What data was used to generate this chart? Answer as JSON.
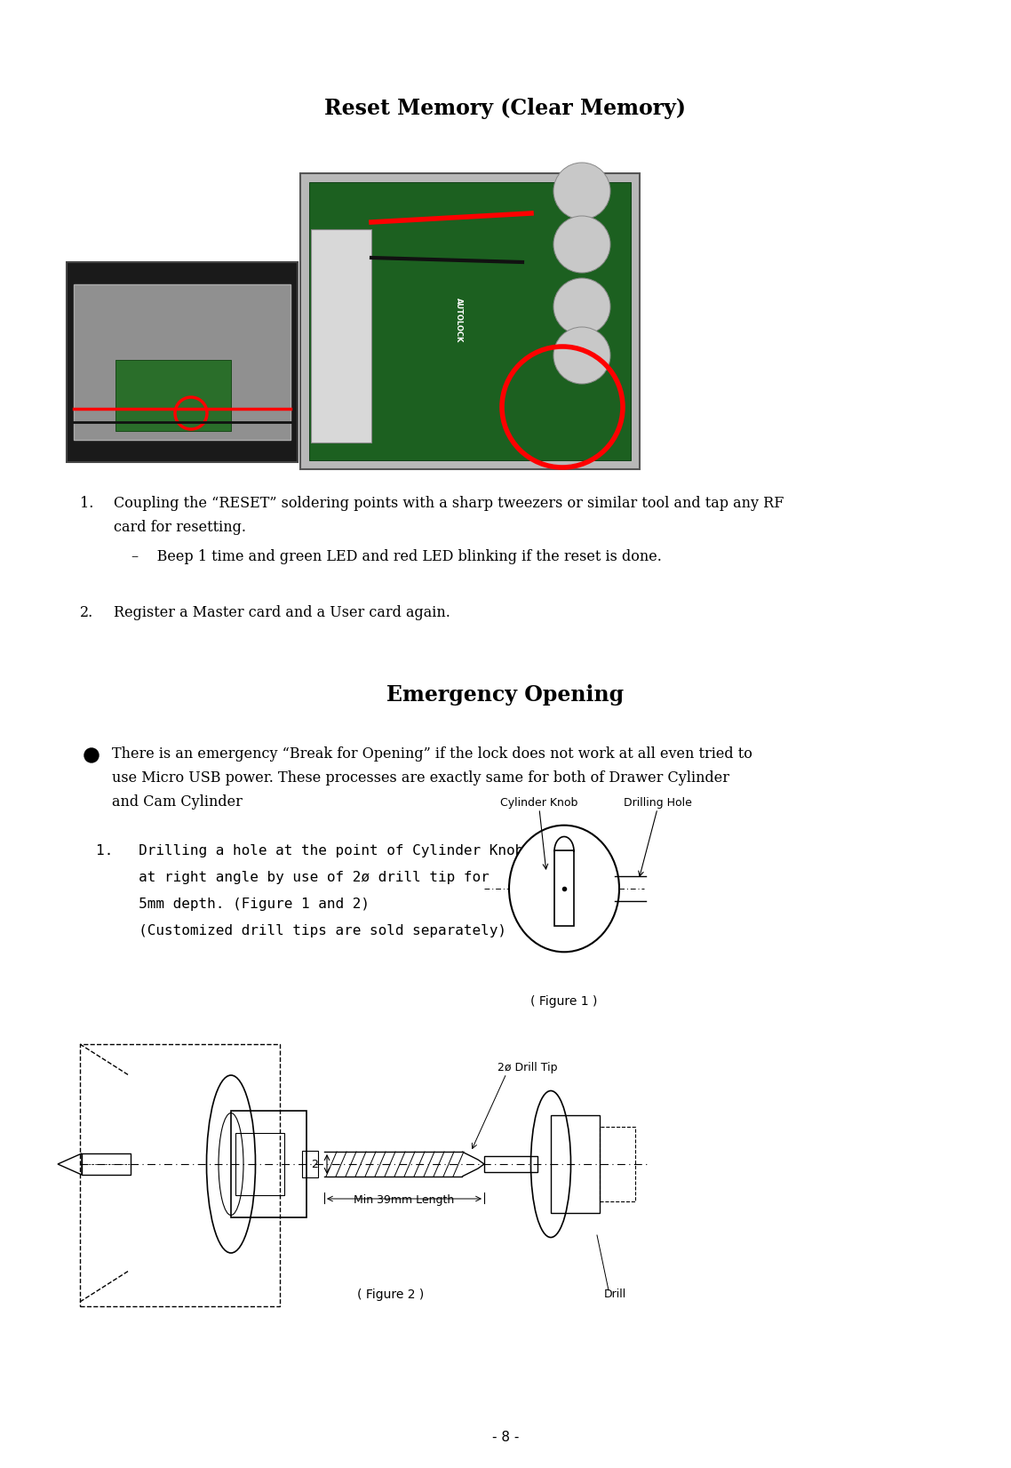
{
  "page_number": "- 8 -",
  "title1": "Reset Memory (Clear Memory)",
  "title2": "Emergency Opening",
  "body_text_1a": "Coupling the “RESET” soldering points with a sharp tweezers or similar tool and tap any RF",
  "body_text_1b": "card for resetting.",
  "body_text_1c": "–    Beep 1 time and green LED and red LED blinking if the reset is done.",
  "body_text_2": "Register a Master card and a User card again.",
  "bullet_line1": "There is an emergency “Break for Opening” if the lock does not work at all even tried to",
  "bullet_line2": "use Micro USB power. These processes are exactly same for both of Drawer Cylinder",
  "bullet_line3": "and Cam Cylinder",
  "step1_line1": "1.   Drilling a hole at the point of Cylinder Knob",
  "step1_line2": "     at right angle by use of 2ø drill tip for",
  "step1_line3": "     5mm depth. (Figure 1 and 2)",
  "step1_line4": "     (Customized drill tips are sold separately)",
  "fig1_label": "( Figure 1 )",
  "fig2_label": "( Figure 2 )",
  "cylinder_knob_label": "Cylinder Knob",
  "drilling_hole_label": "Drilling Hole",
  "drill_tip_label": "2ø Drill Tip",
  "min_length_label": "Min 39mm Length",
  "drill_label": "Drill",
  "bg_color": "#ffffff",
  "text_color": "#000000",
  "title_fontsize": 17,
  "body_fontsize": 11.5,
  "small_fontsize": 9
}
